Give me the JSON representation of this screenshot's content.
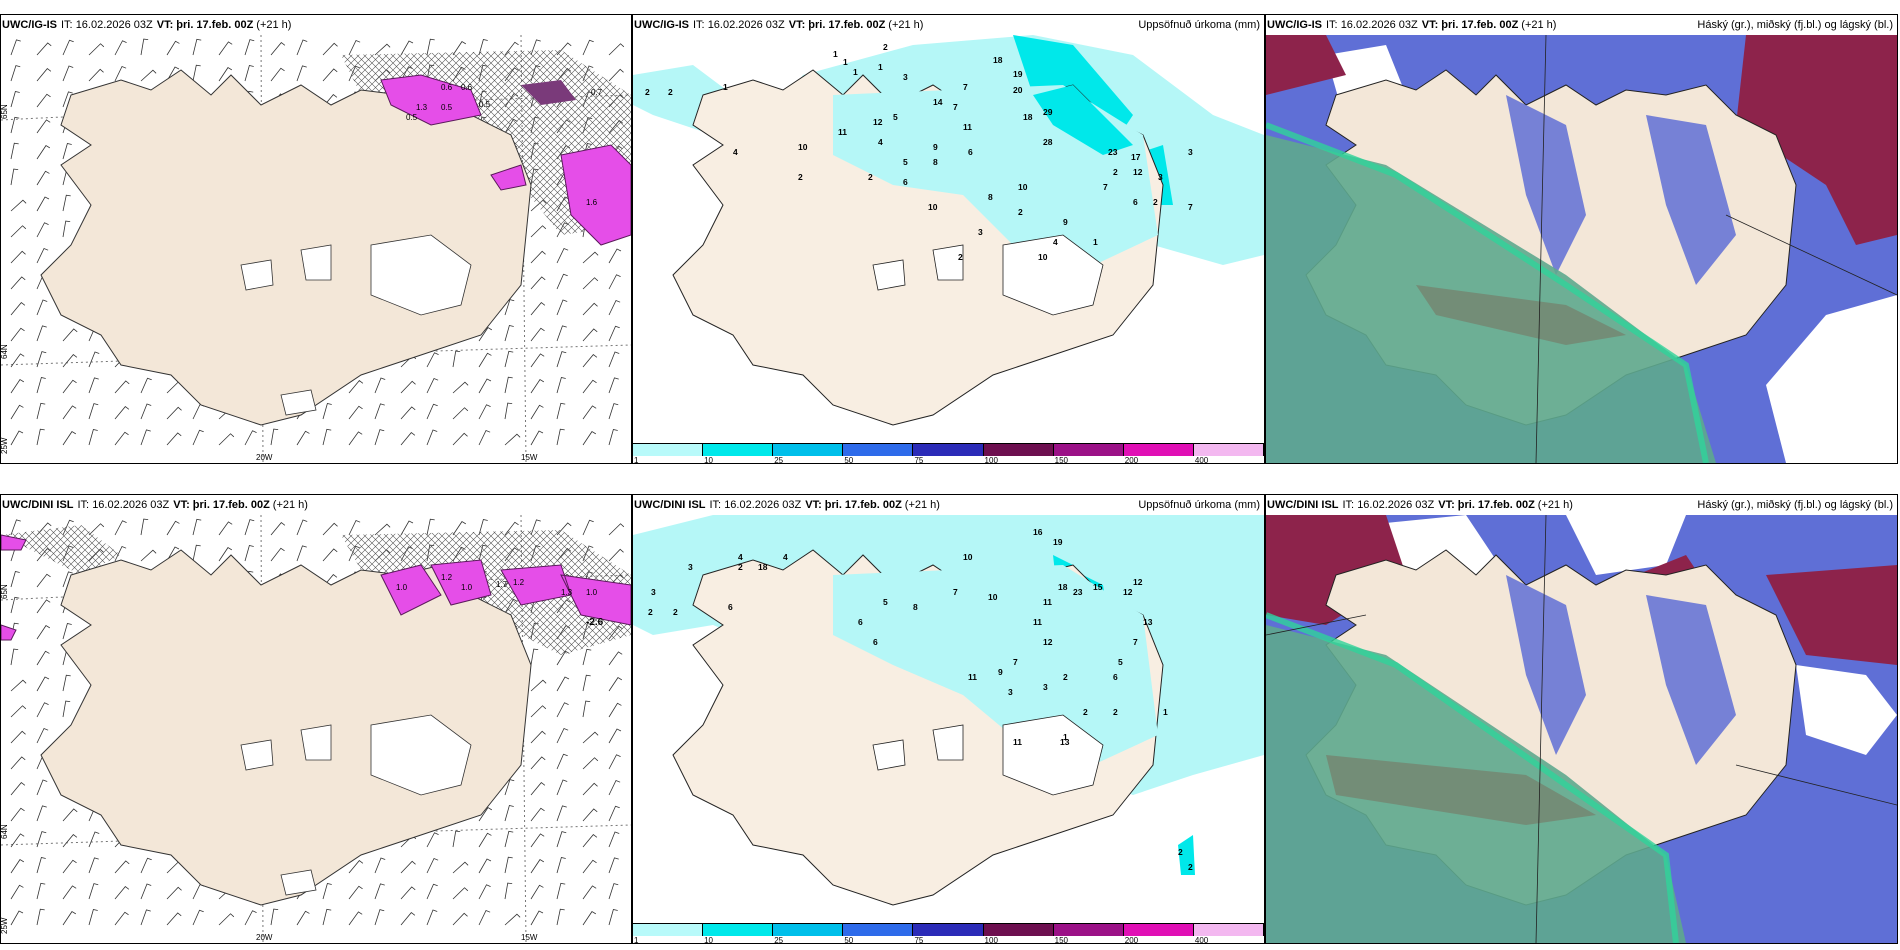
{
  "panels": [
    {
      "model": "UWC/IG-IS",
      "it_label": "IT:",
      "it": "16.02.2026 03Z",
      "vt_label": "VT:",
      "vt": "þri. 17.feb. 00Z",
      "lead": "(+21 h)",
      "right_title": "",
      "lon_labels": [
        "20W",
        "15W"
      ],
      "lat_labels": [
        "65N",
        "64N",
        "25W"
      ],
      "contour_labels": [
        "0.6",
        "0.6",
        "0.5",
        "0.5",
        "0.5",
        "1.3",
        "1.6",
        "0.7"
      ]
    },
    {
      "model": "UWC/IG-IS",
      "it_label": "IT:",
      "it": "16.02.2026 03Z",
      "vt_label": "VT:",
      "vt": "þri. 17.feb. 00Z",
      "lead": "(+21 h)",
      "right_title": "Uppsöfnuð úrkoma (mm)",
      "values": [
        "2",
        "2",
        "1",
        "2",
        "1",
        "3",
        "1",
        "1",
        "12",
        "4",
        "11",
        "14",
        "18",
        "19",
        "20",
        "29",
        "18",
        "5",
        "11",
        "7",
        "7",
        "28",
        "9",
        "6",
        "10",
        "23",
        "5",
        "4",
        "2",
        "2",
        "6",
        "8",
        "2",
        "7",
        "6",
        "3",
        "17",
        "12",
        "10",
        "8",
        "7",
        "2",
        "3",
        "10",
        "3",
        "9",
        "1",
        "2",
        "2",
        "4",
        "10",
        "1"
      ]
    },
    {
      "model": "UWC/IG-IS",
      "it_label": "IT:",
      "it": "16.02.2026 03Z",
      "vt_label": "VT:",
      "vt": "þri. 17.feb. 00Z",
      "lead": "(+21 h)",
      "right_title": "Háský (gr.), miðský (fj.bl.) og lágský (bl.)"
    },
    {
      "model": "UWC/DINI ISL",
      "it_label": "IT:",
      "it": "16.02.2026 03Z",
      "vt_label": "VT:",
      "vt": "þri. 17.feb. 00Z",
      "lead": "(+21 h)",
      "right_title": "",
      "lon_labels": [
        "20W",
        "15W"
      ],
      "lat_labels": [
        "65N",
        "64N",
        "25W"
      ],
      "contour_labels": [
        "1.0",
        "1.2",
        "1.0",
        "1.7",
        "1.2",
        "1.3",
        "1.0",
        "-2.6"
      ]
    },
    {
      "model": "UWC/DINI ISL",
      "it_label": "IT:",
      "it": "16.02.2026 03Z",
      "vt_label": "VT:",
      "vt": "þri. 17.feb. 00Z",
      "lead": "(+21 h)",
      "right_title": "Uppsöfnuð úrkoma (mm)",
      "values": [
        "3",
        "3",
        "2",
        "2",
        "2",
        "18",
        "4",
        "4",
        "6",
        "10",
        "16",
        "19",
        "18",
        "15",
        "12",
        "23",
        "11",
        "10",
        "7",
        "8",
        "5",
        "6",
        "6",
        "11",
        "12",
        "7",
        "9",
        "11",
        "3",
        "12",
        "13",
        "7",
        "5",
        "6",
        "2",
        "3",
        "11",
        "13",
        "1",
        "2",
        "2",
        "1",
        "2",
        "2"
      ]
    },
    {
      "model": "UWC/DINI ISL",
      "it_label": "IT:",
      "it": "16.02.2026 03Z",
      "vt_label": "VT:",
      "vt": "þri. 17.feb. 00Z",
      "lead": "(+21 h)",
      "right_title": "Háský (gr.), miðský (fj.bl.) og lágský (bl.)"
    }
  ],
  "colorbar": {
    "ticks": [
      "1",
      "10",
      "25",
      "50",
      "75",
      "100",
      "150",
      "200",
      "400"
    ],
    "colors": [
      "#b8fafa",
      "#00e8ea",
      "#00bfea",
      "#2e6bea",
      "#2b2bb8",
      "#6d0f4f",
      "#9b1187",
      "#e00fb5",
      "#f3b8f0"
    ]
  },
  "colors": {
    "land": "#f3e7d8",
    "precip": "#b5f7f7",
    "snow": "#e54ee8",
    "low_cloud": "#5f8fd8",
    "mid_cloud": "#6b6bd0",
    "high_cloud": "#8d234b",
    "cloud_green": "#5ea98e"
  }
}
